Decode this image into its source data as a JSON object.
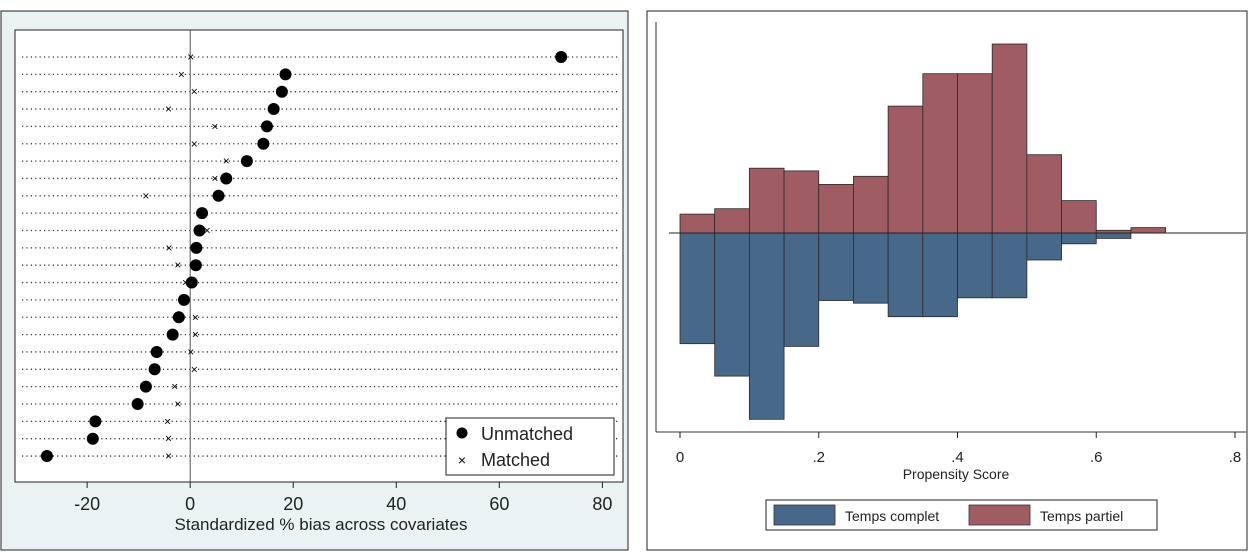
{
  "chart_data": [
    {
      "type": "scatter",
      "title": "",
      "xlabel": "Standardized % bias across covariates",
      "ylabel": "",
      "xlim": [
        -34,
        84
      ],
      "x_ticks": [
        -20,
        0,
        20,
        40,
        60,
        80
      ],
      "x_tick_labels": [
        "-20",
        "0",
        "20",
        "40",
        "60",
        "80"
      ],
      "reference_line_x": 0,
      "grid": "dotted row lines per covariate",
      "legend_position": "bottom-right",
      "series": [
        {
          "name": "Unmatched",
          "marker": "filled-circle",
          "values": [
            72,
            18.5,
            17.8,
            16.2,
            14.9,
            14.2,
            11,
            7,
            5.5,
            2.3,
            1.8,
            1.2,
            1.1,
            0.3,
            -1.2,
            -2.2,
            -3.4,
            -6.5,
            -6.9,
            -8.6,
            -10.2,
            -18.4,
            -18.9,
            -27.8
          ]
        },
        {
          "name": "Matched",
          "marker": "x",
          "values": [
            0.1,
            -1.7,
            0.8,
            -4.2,
            4.8,
            0.8,
            7,
            4.8,
            -8.6,
            2,
            3.3,
            -4.1,
            -2.4,
            -0.9,
            -0.6,
            1,
            1,
            0.1,
            0.8,
            -3,
            -2.4,
            -4.4,
            -4.2,
            -4.2
          ]
        }
      ]
    },
    {
      "type": "bar",
      "title": "",
      "xlabel": "Propensity Score",
      "ylabel": "",
      "xlim": [
        0,
        0.8
      ],
      "x_ticks": [
        0,
        0.2,
        0.4,
        0.6,
        0.8
      ],
      "x_tick_labels": [
        "0",
        ".2",
        ".4",
        ".6",
        ".8"
      ],
      "bin_width": 0.05,
      "bin_centers": [
        0.025,
        0.075,
        0.125,
        0.175,
        0.225,
        0.275,
        0.325,
        0.375,
        0.425,
        0.475,
        0.525,
        0.575,
        0.625,
        0.675
      ],
      "ylim": [
        -0.7,
        0.7
      ],
      "grid": "off",
      "legend_position": "bottom",
      "series": [
        {
          "name": "Temps complet",
          "color": "#48688a",
          "direction": "down",
          "values": [
            0.41,
            0.53,
            0.69,
            0.42,
            0.25,
            0.26,
            0.31,
            0.31,
            0.24,
            0.24,
            0.1,
            0.04,
            0.02,
            0
          ]
        },
        {
          "name": "Temps partiel",
          "color": "#a05c63",
          "direction": "up",
          "values": [
            0.07,
            0.09,
            0.24,
            0.23,
            0.18,
            0.21,
            0.47,
            0.59,
            0.59,
            0.7,
            0.29,
            0.12,
            0.01,
            0.02
          ]
        }
      ]
    }
  ]
}
